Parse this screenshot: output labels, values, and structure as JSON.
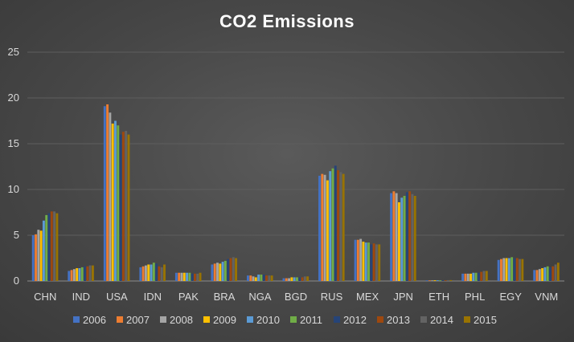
{
  "chart_data": {
    "type": "bar",
    "title": "CO2 Emissions",
    "xlabel": "",
    "ylabel": "",
    "ylim": [
      0,
      25
    ],
    "yticks": [
      0,
      5,
      10,
      15,
      20,
      25
    ],
    "grid": true,
    "legend_position": "bottom",
    "categories": [
      "CHN",
      "IND",
      "USA",
      "IDN",
      "PAK",
      "BRA",
      "NGA",
      "BGD",
      "RUS",
      "MEX",
      "JPN",
      "ETH",
      "PHL",
      "EGY",
      "VNM"
    ],
    "series": [
      {
        "name": "2006",
        "color": "#4472c4",
        "values": [
          5.0,
          1.1,
          19.1,
          1.5,
          0.9,
          1.8,
          0.6,
          0.3,
          11.5,
          4.5,
          9.6,
          0.07,
          0.8,
          2.3,
          1.2
        ]
      },
      {
        "name": "2007",
        "color": "#ed7d31",
        "values": [
          5.1,
          1.2,
          19.3,
          1.6,
          0.9,
          1.9,
          0.6,
          0.3,
          11.7,
          4.5,
          9.8,
          0.07,
          0.8,
          2.4,
          1.2
        ]
      },
      {
        "name": "2008",
        "color": "#a5a5a5",
        "values": [
          5.6,
          1.3,
          18.4,
          1.7,
          0.9,
          2.0,
          0.5,
          0.3,
          11.6,
          4.6,
          9.6,
          0.07,
          0.8,
          2.5,
          1.3
        ]
      },
      {
        "name": "2009",
        "color": "#ffc000",
        "values": [
          5.5,
          1.4,
          17.2,
          1.8,
          0.9,
          1.9,
          0.4,
          0.4,
          11.0,
          4.3,
          8.6,
          0.08,
          0.8,
          2.5,
          1.4
        ]
      },
      {
        "name": "2010",
        "color": "#5b9bd5",
        "values": [
          6.6,
          1.4,
          17.5,
          1.8,
          0.9,
          2.1,
          0.7,
          0.4,
          12.0,
          4.2,
          9.1,
          0.08,
          0.9,
          2.5,
          1.5
        ]
      },
      {
        "name": "2011",
        "color": "#70ad47",
        "values": [
          7.2,
          1.5,
          17.0,
          2.0,
          0.9,
          2.2,
          0.7,
          0.4,
          12.3,
          4.2,
          9.3,
          0.08,
          0.9,
          2.6,
          1.6
        ]
      },
      {
        "name": "2012",
        "color": "#264478",
        "values": [
          7.4,
          1.6,
          16.0,
          1.9,
          0.8,
          2.4,
          0.7,
          0.4,
          12.6,
          4.0,
          9.7,
          0.08,
          0.9,
          2.5,
          1.5
        ]
      },
      {
        "name": "2013",
        "color": "#9e480e",
        "values": [
          7.6,
          1.6,
          16.3,
          1.6,
          0.8,
          2.5,
          0.6,
          0.4,
          12.1,
          4.1,
          9.8,
          0.08,
          1.0,
          2.5,
          1.6
        ]
      },
      {
        "name": "2014",
        "color": "#636363",
        "values": [
          7.6,
          1.7,
          16.4,
          1.5,
          0.8,
          2.6,
          0.6,
          0.5,
          11.9,
          4.0,
          9.5,
          0.09,
          1.1,
          2.4,
          1.8
        ]
      },
      {
        "name": "2015",
        "color": "#997300",
        "values": [
          7.4,
          1.7,
          16.0,
          1.8,
          0.9,
          2.5,
          0.6,
          0.5,
          11.7,
          4.0,
          9.3,
          0.1,
          1.1,
          2.4,
          2.0
        ]
      }
    ]
  }
}
